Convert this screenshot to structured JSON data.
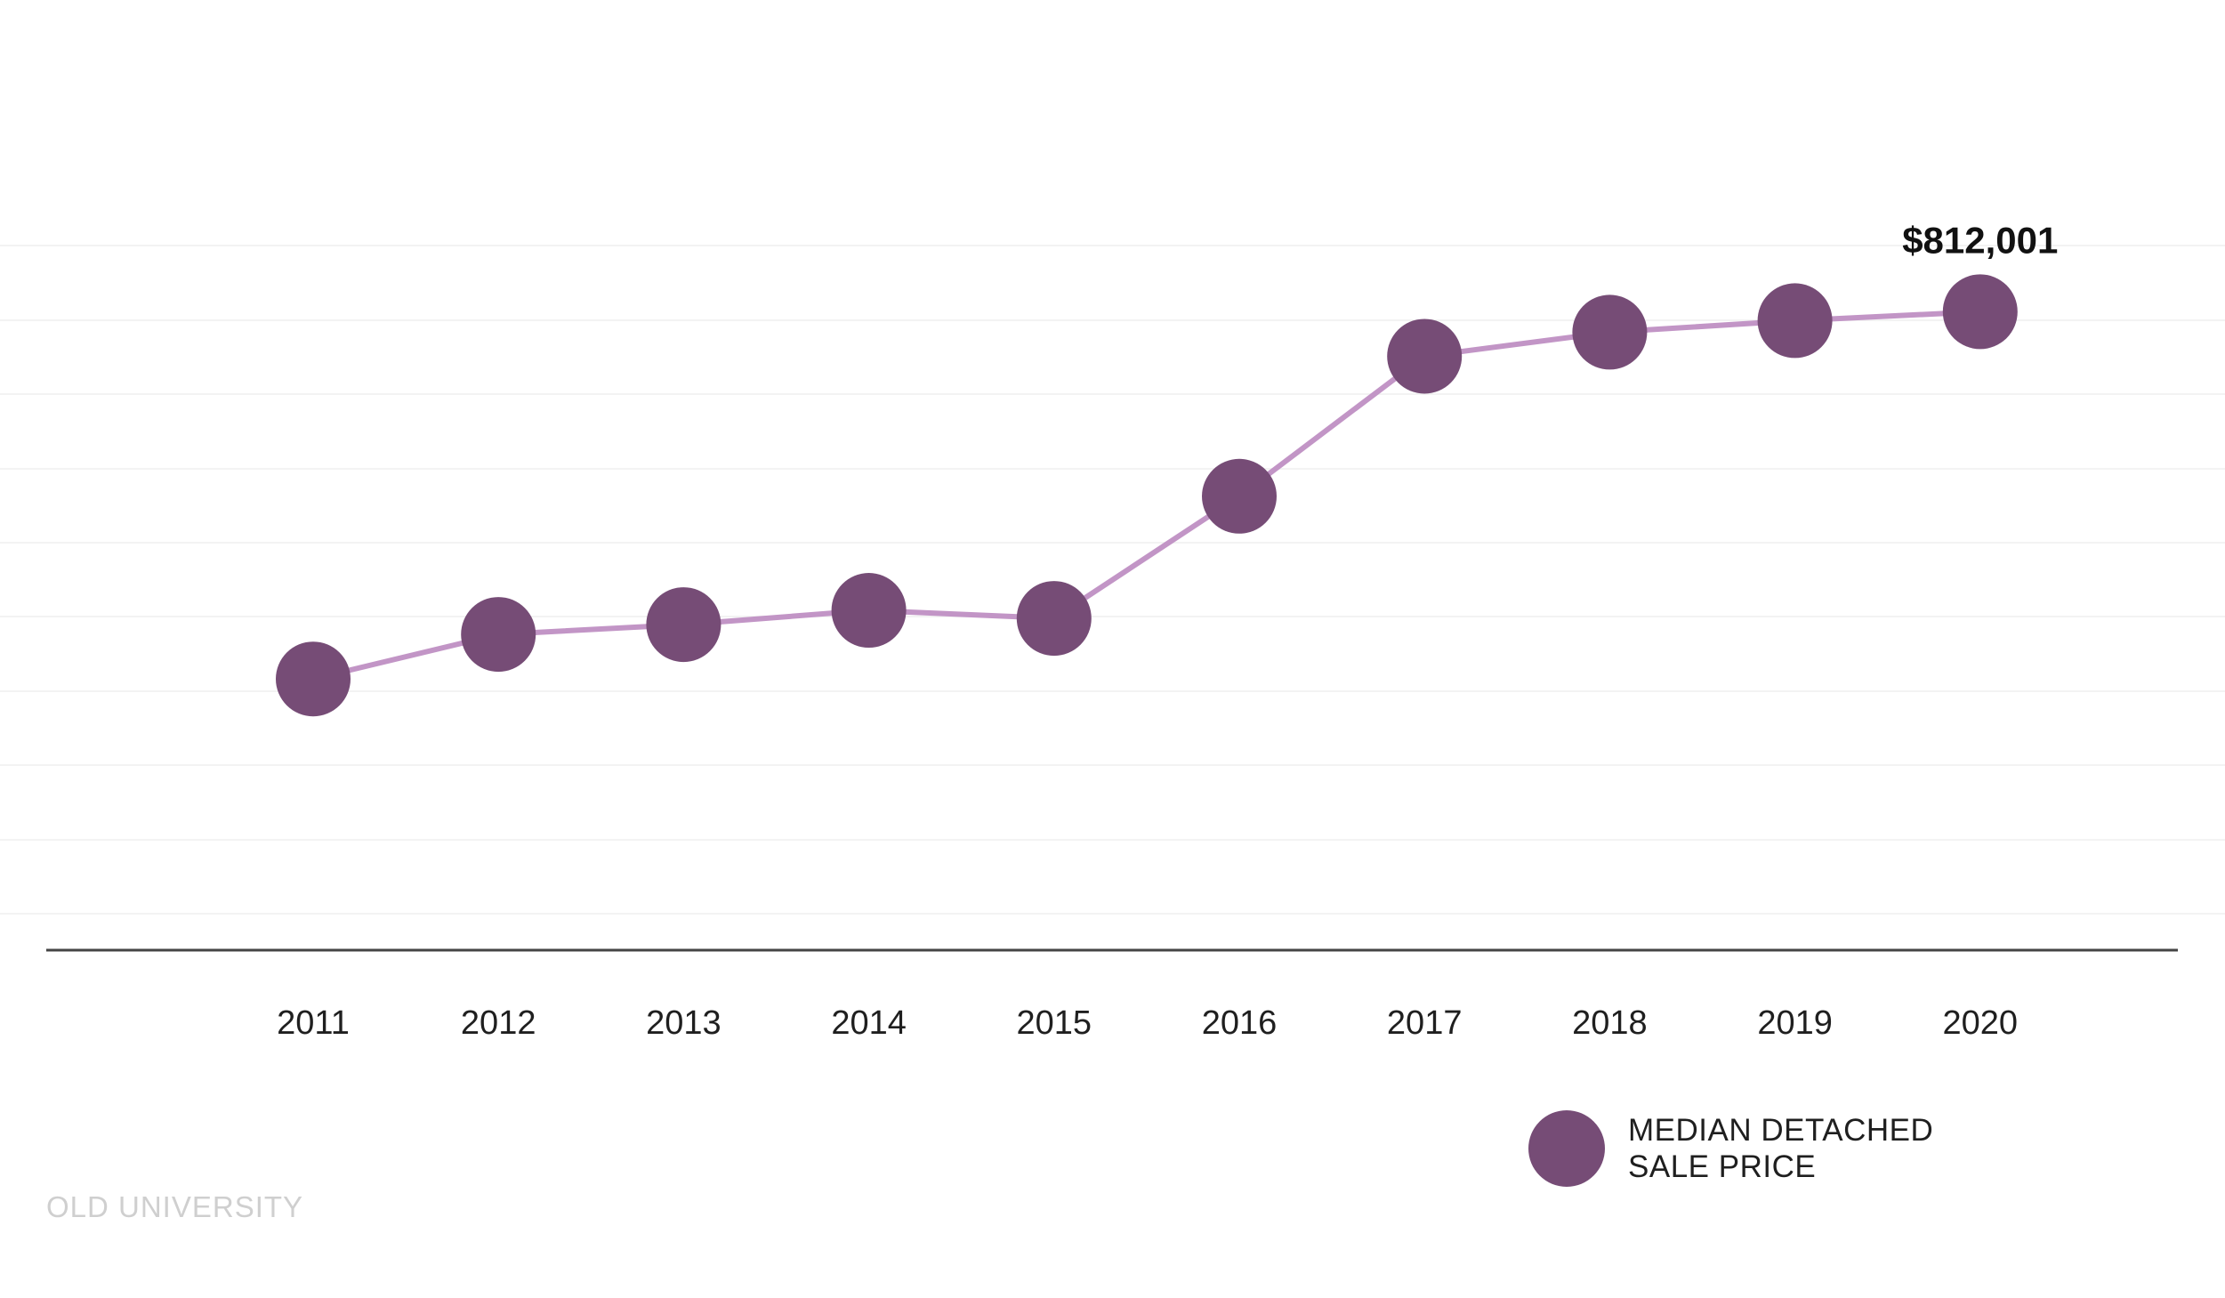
{
  "chart_data": {
    "type": "line",
    "categories": [
      "2011",
      "2012",
      "2013",
      "2014",
      "2015",
      "2016",
      "2017",
      "2018",
      "2019",
      "2020"
    ],
    "series": [
      {
        "name": "MEDIAN DETACHED SALE PRICE",
        "values": [
          400000,
          450000,
          461000,
          477000,
          468000,
          605000,
          762000,
          789000,
          802000,
          812001
        ]
      }
    ],
    "value_labels": [
      {
        "category": "2020",
        "text": "$812,001"
      }
    ],
    "title": "",
    "xlabel": "",
    "ylabel": "",
    "ylim": [
      0,
      1000000
    ],
    "grid": true,
    "legend_position": "bottom-right",
    "colors": {
      "marker": "#764c76",
      "line": "#c295c6",
      "grid": "#f3f3f3",
      "baseline": "#444444"
    }
  },
  "legend": {
    "line1": "MEDIAN DETACHED",
    "line2": "SALE PRICE"
  },
  "brand": {
    "text": "OLD UNIVERSITY"
  }
}
